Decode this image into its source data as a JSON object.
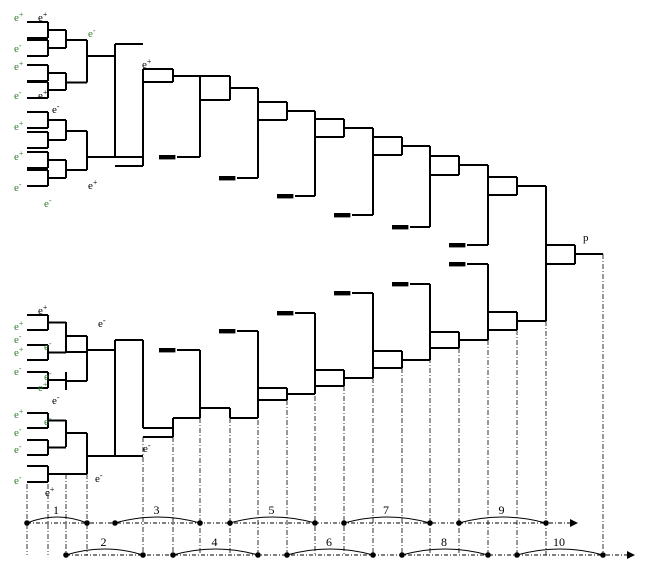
{
  "diagram": {
    "output_label": "p",
    "stage_numbers": [
      "1",
      "2",
      "3",
      "4",
      "5",
      "6",
      "7",
      "8",
      "9",
      "10"
    ],
    "particle_labels": {
      "e_plus": "e+",
      "e_minus": "e-"
    },
    "left_labels_upper": [
      "e+",
      "e-",
      "e+",
      "e-",
      "e+",
      "e+",
      "e-"
    ],
    "left_labels_lower": [
      "e+",
      "e-",
      "e+",
      "e-",
      "e+",
      "e-",
      "e-",
      "e-"
    ],
    "inner_labels": [
      "e+",
      "e-",
      "e+",
      "e-",
      "e+",
      "e-",
      "e+",
      "e+",
      "e-",
      "e-",
      "e+",
      "e-",
      "e-",
      "e-",
      "e+",
      "e-",
      "e-"
    ],
    "colors": {
      "line": "#000000",
      "early_labels": "#2d7a2d"
    }
  }
}
